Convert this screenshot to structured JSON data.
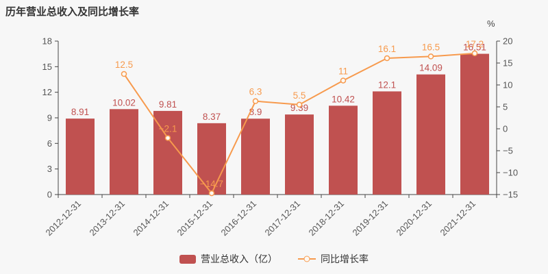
{
  "chart_data": {
    "type": "bar+line",
    "title": "历年营业总收入及同比增长率",
    "categories": [
      "2012-12-31",
      "2013-12-31",
      "2014-12-31",
      "2015-12-31",
      "2016-12-31",
      "2017-12-31",
      "2018-12-31",
      "2019-12-31",
      "2020-12-31",
      "2021-12-31"
    ],
    "series": [
      {
        "name": "营业总收入（亿）",
        "type": "bar",
        "axis": "left",
        "color": "#c05150",
        "values": [
          8.91,
          10.02,
          9.81,
          8.37,
          8.9,
          9.39,
          10.42,
          12.1,
          14.09,
          16.51
        ],
        "labels": [
          "8.91",
          "10.02",
          "9.81",
          "8.37",
          "8.9",
          "9.39",
          "10.42",
          "12.1",
          "14.09",
          "16.51"
        ]
      },
      {
        "name": "同比增长率",
        "type": "line",
        "axis": "right",
        "color": "#f79a4d",
        "values": [
          null,
          12.5,
          -2.1,
          -14.7,
          6.3,
          5.5,
          11,
          16.1,
          16.5,
          17.2
        ],
        "labels": [
          null,
          "12.5",
          "−2.1",
          "−14.7",
          "6.3",
          "5.5",
          "11",
          "16.1",
          "16.5",
          "17.2"
        ]
      }
    ],
    "left_axis": {
      "min": 0,
      "max": 18,
      "ticks": [
        0,
        3,
        6,
        9,
        12,
        15,
        18
      ]
    },
    "right_axis": {
      "min": -15,
      "max": 20,
      "ticks": [
        -15,
        -10,
        -5,
        0,
        5,
        10,
        15,
        20
      ],
      "tick_labels": [
        "−15",
        "−10",
        "−5",
        "0",
        "5",
        "10",
        "15",
        "20"
      ],
      "unit": "%"
    },
    "legend_position": "bottom-center",
    "grid": false
  }
}
